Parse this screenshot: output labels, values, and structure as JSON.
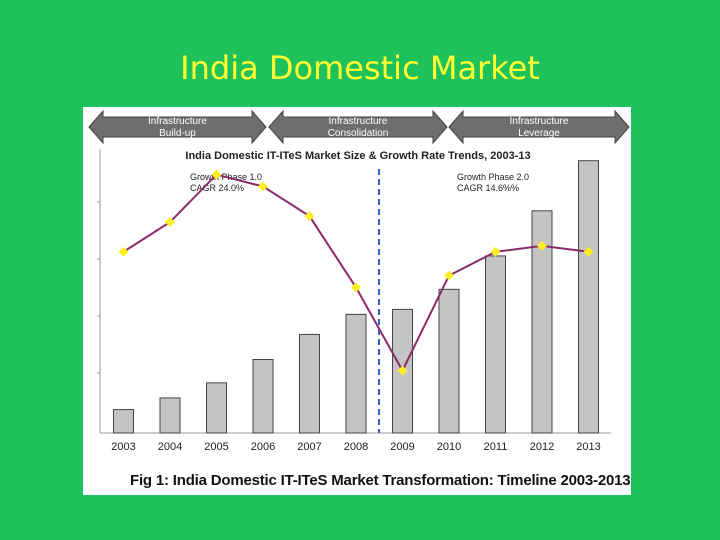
{
  "slide_title": "India Domestic Market",
  "colors": {
    "background": "#1ec15a",
    "title": "#ffff33",
    "bar": "#c4c4c4",
    "line": "#8b2a6a",
    "marker": "#ffee22",
    "divider": "#3a5fcd"
  },
  "chart_data": {
    "type": "bar",
    "title": "India Domestic IT-ITeS Market Size & Growth Rate Trends, 2003-13",
    "categories": [
      "2003",
      "2004",
      "2005",
      "2006",
      "2007",
      "2008",
      "2009",
      "2010",
      "2011",
      "2012",
      "2013"
    ],
    "series": [
      {
        "values": [
          14,
          21,
          30,
          44,
          59,
          71,
          74,
          86,
          106,
          133,
          163
        ]
      },
      {
        "values": [
          30,
          35,
          43,
          41,
          36,
          24,
          10,
          26,
          30,
          31,
          30
        ]
      }
    ],
    "phases": [
      "Infrastructure Build-up",
      "Infrastructure Consolidation",
      "Infrastructure Leverage"
    ],
    "annotations": [
      {
        "line1": "Growth Phase 1.0",
        "line2": "CAGR 24.0%"
      },
      {
        "line1": "Growth Phase 2.0",
        "line2": "CAGR 14.6%%"
      }
    ],
    "grid": false,
    "caption": "Fig 1: India Domestic IT-ITeS Market Transformation: Timeline 2003-2013"
  }
}
